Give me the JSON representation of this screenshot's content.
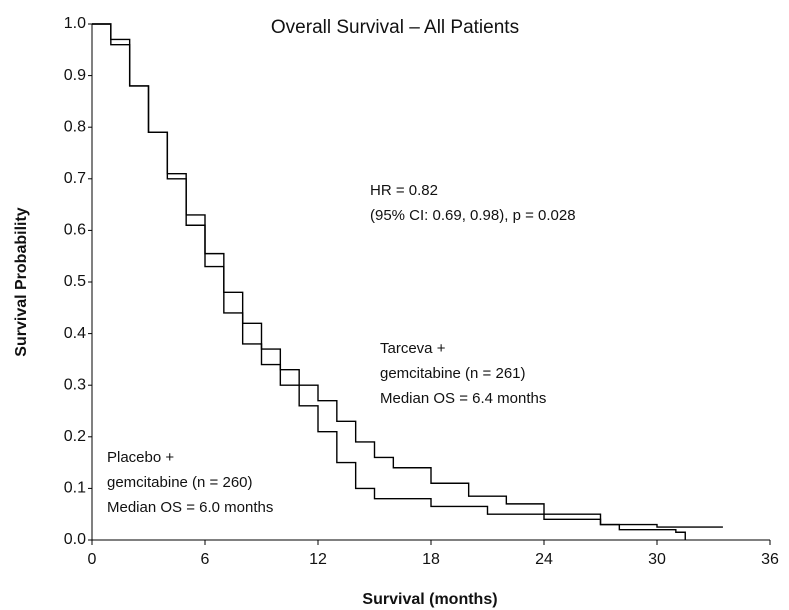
{
  "chart_data": {
    "type": "line",
    "title": "Overall Survival – All Patients",
    "xlabel": "Survival (months)",
    "ylabel": "Survival Probability",
    "xlim": [
      0,
      36
    ],
    "xticks": [
      0,
      6,
      12,
      18,
      24,
      30,
      36
    ],
    "ylim": [
      0,
      1
    ],
    "yticks": [
      {
        "value": 0,
        "label": "0.0"
      },
      0.1,
      0.2,
      0.3,
      0.4,
      0.5,
      0.6,
      0.7,
      0.8,
      0.9,
      {
        "value": 1,
        "label": "1.0"
      }
    ],
    "grid": false,
    "annotations": [
      "HR = 0.82",
      "(95% CI: 0.69, 0.98), p = 0.028",
      "Tarceva +",
      "gemcitabine (n = 261)",
      "Median OS = 6.4 months",
      "Placebo +",
      "gemcitabine (n = 260)",
      "Median OS = 6.0 months"
    ],
    "series": [
      {
        "color": "#000000",
        "x": [
          0,
          1,
          2,
          3,
          4,
          5,
          6,
          7,
          8,
          9,
          10,
          11,
          12,
          13,
          14,
          15,
          16,
          18,
          20,
          22,
          24,
          27,
          30,
          33.5
        ],
        "values": [
          1.0,
          0.97,
          0.88,
          0.79,
          0.71,
          0.63,
          0.555,
          0.48,
          0.42,
          0.37,
          0.33,
          0.3,
          0.27,
          0.23,
          0.19,
          0.16,
          0.14,
          0.11,
          0.085,
          0.07,
          0.05,
          0.03,
          0.025,
          0.025
        ]
      },
      {
        "color": "#000000",
        "x": [
          0,
          1,
          2,
          3,
          4,
          5,
          6,
          7,
          8,
          9,
          10,
          11,
          12,
          13,
          14,
          15,
          18,
          21,
          24,
          27,
          28,
          31,
          31.5
        ],
        "values": [
          1.0,
          0.96,
          0.88,
          0.79,
          0.7,
          0.61,
          0.53,
          0.44,
          0.38,
          0.34,
          0.3,
          0.26,
          0.21,
          0.15,
          0.1,
          0.08,
          0.065,
          0.05,
          0.04,
          0.03,
          0.02,
          0.015,
          0.0
        ]
      }
    ]
  }
}
